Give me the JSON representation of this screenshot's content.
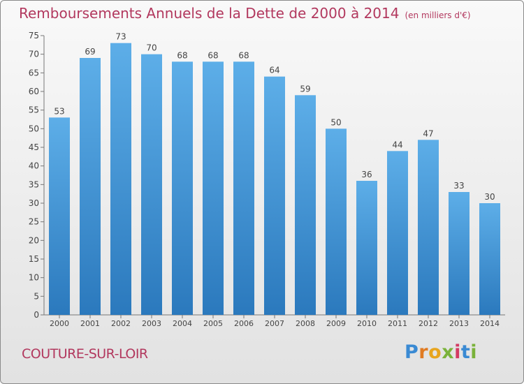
{
  "header": {
    "title": "Remboursements Annuels de la Dette de 2000 à 2014",
    "unit": "(en milliers d'€)"
  },
  "footer": {
    "commune": "COUTURE-SUR-LOIR",
    "logo_text": "Proxiti"
  },
  "colors": {
    "bar_top": "#5daee8",
    "bar_bottom": "#2b79bd",
    "title": "#b2385e"
  },
  "chart_data": {
    "type": "bar",
    "title": "Remboursements Annuels de la Dette de 2000 à 2014",
    "subtitle": "(en milliers d'€)",
    "xlabel": "",
    "ylabel": "",
    "ylim": [
      0,
      75
    ],
    "yticks": [
      0,
      5,
      10,
      15,
      20,
      25,
      30,
      35,
      40,
      45,
      50,
      55,
      60,
      65,
      70,
      75
    ],
    "grid": false,
    "categories": [
      "2000",
      "2001",
      "2002",
      "2003",
      "2004",
      "2005",
      "2006",
      "2007",
      "2008",
      "2009",
      "2010",
      "2011",
      "2012",
      "2013",
      "2014"
    ],
    "values": [
      53,
      69,
      73,
      70,
      68,
      68,
      68,
      64,
      59,
      50,
      36,
      44,
      47,
      33,
      30
    ]
  }
}
